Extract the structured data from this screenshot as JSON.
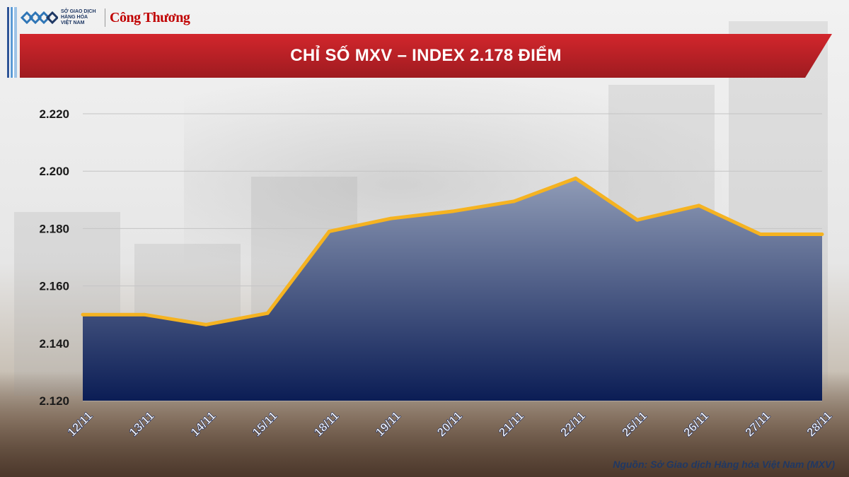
{
  "header": {
    "logo_mxv_lines": [
      "SỞ GIAO DỊCH",
      "HÀNG HÓA",
      "VIỆT NAM"
    ],
    "logo_congthuong": "Công Thương"
  },
  "colors": {
    "banner": "#b42025",
    "area_top": "#8f9bb6",
    "area_bottom": "#0b1d55",
    "line": "#f5b321"
  },
  "chart_data": {
    "type": "area",
    "title": "CHỈ SỐ MXV – INDEX 2.178 ĐIỂM",
    "categories": [
      "12/11",
      "13/11",
      "14/11",
      "15/11",
      "18/11",
      "19/11",
      "20/11",
      "21/11",
      "22/11",
      "25/11",
      "26/11",
      "27/11",
      "28/11"
    ],
    "series": [
      {
        "values": [
          2150,
          2150,
          2146.5,
          2150.5,
          2179,
          2183.5,
          2186,
          2189.5,
          2197.5,
          2183,
          2188,
          2178,
          2178
        ]
      }
    ],
    "ylim": [
      2120,
      2220
    ],
    "yticks": [
      "2.120",
      "2.140",
      "2.160",
      "2.180",
      "2.200",
      "2.220"
    ],
    "grid": true,
    "legend": "none"
  },
  "footer": {
    "source": "Nguồn: Sở Giao dịch Hàng hóa Việt Nam (MXV)"
  }
}
